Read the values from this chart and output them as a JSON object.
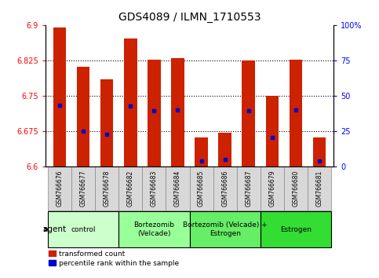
{
  "title": "GDS4089 / ILMN_1710553",
  "samples": [
    "GSM766676",
    "GSM766677",
    "GSM766678",
    "GSM766682",
    "GSM766683",
    "GSM766684",
    "GSM766685",
    "GSM766686",
    "GSM766687",
    "GSM766679",
    "GSM766680",
    "GSM766681"
  ],
  "bar_values": [
    6.895,
    6.812,
    6.785,
    6.872,
    6.826,
    6.83,
    6.662,
    6.672,
    6.825,
    6.75,
    6.826,
    6.662
  ],
  "percentile_values": [
    6.73,
    6.675,
    6.668,
    6.728,
    6.718,
    6.72,
    6.612,
    6.614,
    6.718,
    6.662,
    6.72,
    6.612
  ],
  "ymin": 6.6,
  "ymax": 6.9,
  "yticks": [
    6.6,
    6.675,
    6.75,
    6.825,
    6.9
  ],
  "ytick_labels": [
    "6.6",
    "6.675",
    "6.75",
    "6.825",
    "6.9"
  ],
  "right_yticks": [
    0,
    25,
    50,
    75,
    100
  ],
  "right_ytick_labels": [
    "0",
    "25",
    "50",
    "75",
    "100%"
  ],
  "bar_color": "#cc2200",
  "dot_color": "#0000cc",
  "background_color": "#ffffff",
  "groups": [
    {
      "label": "control",
      "start": 0,
      "end": 3,
      "color": "#ccffcc"
    },
    {
      "label": "Bortezomib\n(Velcade)",
      "start": 3,
      "end": 6,
      "color": "#99ff99"
    },
    {
      "label": "Bortezomib (Velcade) +\nEstrogen",
      "start": 6,
      "end": 9,
      "color": "#66ee66"
    },
    {
      "label": "Estrogen",
      "start": 9,
      "end": 12,
      "color": "#33dd33"
    }
  ],
  "legend_items": [
    {
      "label": "transformed count",
      "color": "#cc2200"
    },
    {
      "label": "percentile rank within the sample",
      "color": "#0000cc"
    }
  ],
  "agent_label": "agent",
  "title_fontsize": 10,
  "tick_fontsize": 7,
  "label_fontsize": 7.5
}
